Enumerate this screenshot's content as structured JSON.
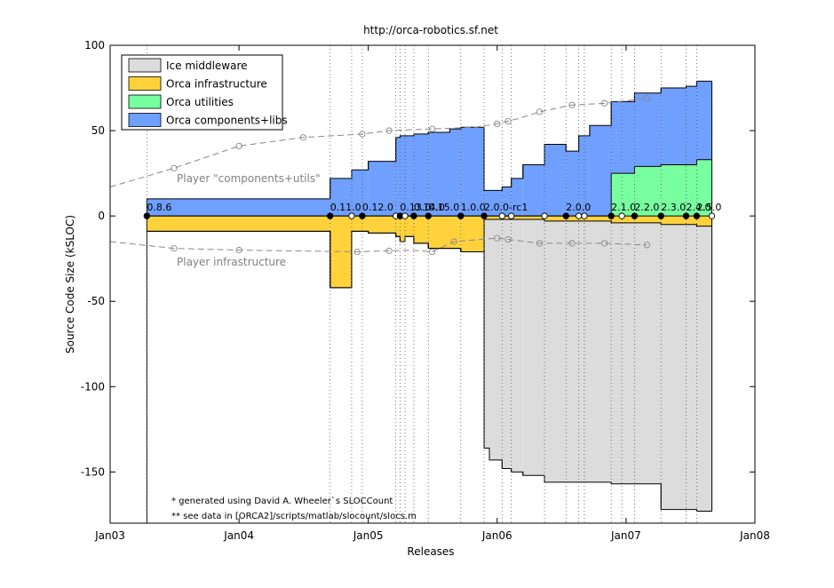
{
  "chart_data": {
    "type": "area",
    "title": "http://orca-robotics.sf.net",
    "xlabel": "Releases",
    "ylabel": "Source Code Size (kSLOC)",
    "xlim": [
      "2003-01-01",
      "2008-01-01"
    ],
    "ylim": [
      -180,
      100
    ],
    "x_ticks": [
      {
        "date": "2003-01-01",
        "label": "Jan03"
      },
      {
        "date": "2004-01-01",
        "label": "Jan04"
      },
      {
        "date": "2005-01-01",
        "label": "Jan05"
      },
      {
        "date": "2006-01-01",
        "label": "Jan06"
      },
      {
        "date": "2007-01-01",
        "label": "Jan07"
      },
      {
        "date": "2008-01-01",
        "label": "Jan08"
      }
    ],
    "y_ticks": [
      -150,
      -100,
      -50,
      0,
      50,
      100
    ],
    "grid": "vertical dotted lines at release dates",
    "legend": {
      "position": "top-left"
    },
    "series": [
      {
        "name": "Ice middleware",
        "color": "#dcdcdc"
      },
      {
        "name": "Orca infrastructure",
        "color": "#ffd23c"
      },
      {
        "name": "Orca utilities",
        "color": "#78ff9f"
      },
      {
        "name": "Orca components+libs",
        "color": "#6f9fff"
      }
    ],
    "steps": [
      {
        "start": "2003-04-15",
        "end": "2004-09-15",
        "infra": 9,
        "ice": 0,
        "comps": 10,
        "utils": 0
      },
      {
        "start": "2004-09-15",
        "end": "2004-11-15",
        "infra": 42,
        "ice": 0,
        "comps": 22,
        "utils": 0
      },
      {
        "start": "2004-11-15",
        "end": "2005-01-01",
        "infra": 9,
        "ice": 0,
        "comps": 27,
        "utils": 0
      },
      {
        "start": "2005-01-01",
        "end": "2005-03-20",
        "infra": 10,
        "ice": 0,
        "comps": 32,
        "utils": 0
      },
      {
        "start": "2005-03-20",
        "end": "2005-04-01",
        "infra": 12,
        "ice": 0,
        "comps": 46,
        "utils": 0
      },
      {
        "start": "2005-04-01",
        "end": "2005-04-15",
        "infra": 15,
        "ice": 0,
        "comps": 47,
        "utils": 0
      },
      {
        "start": "2005-04-15",
        "end": "2005-05-10",
        "infra": 12,
        "ice": 0,
        "comps": 47,
        "utils": 0
      },
      {
        "start": "2005-05-10",
        "end": "2005-06-20",
        "infra": 16,
        "ice": 0,
        "comps": 48,
        "utils": 0
      },
      {
        "start": "2005-06-20",
        "end": "2005-08-20",
        "infra": 19,
        "ice": 0,
        "comps": 49,
        "utils": 0
      },
      {
        "start": "2005-08-20",
        "end": "2005-09-20",
        "infra": 19,
        "ice": 0,
        "comps": 51,
        "utils": 0
      },
      {
        "start": "2005-09-20",
        "end": "2005-11-25",
        "infra": 21,
        "ice": 0,
        "comps": 52,
        "utils": 0
      },
      {
        "start": "2005-11-25",
        "end": "2005-12-10",
        "infra": 2,
        "ice": 134,
        "comps": 15,
        "utils": 0
      },
      {
        "start": "2005-12-10",
        "end": "2006-01-15",
        "infra": 2,
        "ice": 141,
        "comps": 15,
        "utils": 0
      },
      {
        "start": "2006-01-15",
        "end": "2006-02-10",
        "infra": 2,
        "ice": 146,
        "comps": 17,
        "utils": 0
      },
      {
        "start": "2006-02-10",
        "end": "2006-03-15",
        "infra": 2,
        "ice": 148,
        "comps": 22,
        "utils": 0
      },
      {
        "start": "2006-03-15",
        "end": "2006-05-15",
        "infra": 2,
        "ice": 150,
        "comps": 30,
        "utils": 0
      },
      {
        "start": "2006-05-15",
        "end": "2006-07-15",
        "infra": 3,
        "ice": 153,
        "comps": 42,
        "utils": 0
      },
      {
        "start": "2006-07-15",
        "end": "2006-08-20",
        "infra": 3,
        "ice": 153,
        "comps": 38,
        "utils": 0
      },
      {
        "start": "2006-08-20",
        "end": "2006-09-20",
        "infra": 3,
        "ice": 153,
        "comps": 47,
        "utils": 0
      },
      {
        "start": "2006-09-20",
        "end": "2006-11-20",
        "infra": 3,
        "ice": 153,
        "comps": 53,
        "utils": 0
      },
      {
        "start": "2006-11-20",
        "end": "2006-12-20",
        "infra": 4,
        "ice": 153,
        "comps": 42,
        "utils": 25
      },
      {
        "start": "2006-12-20",
        "end": "2007-01-25",
        "infra": 4,
        "ice": 153,
        "comps": 42,
        "utils": 25
      },
      {
        "start": "2007-01-25",
        "end": "2007-04-10",
        "infra": 4,
        "ice": 153,
        "comps": 43,
        "utils": 29
      },
      {
        "start": "2007-04-10",
        "end": "2007-06-20",
        "infra": 5,
        "ice": 167,
        "comps": 45,
        "utils": 30
      },
      {
        "start": "2007-06-20",
        "end": "2007-07-20",
        "infra": 5,
        "ice": 167,
        "comps": 46,
        "utils": 30
      },
      {
        "start": "2007-07-20",
        "end": "2007-09-01",
        "infra": 6,
        "ice": 167,
        "comps": 46,
        "utils": 33
      }
    ],
    "releases": [
      {
        "date": "2003-04-15",
        "label": "0.8.6",
        "labeled": true
      },
      {
        "date": "2004-09-15",
        "label": "0.11.0",
        "labeled": true
      },
      {
        "date": "2004-11-15",
        "label": "",
        "labeled": false
      },
      {
        "date": "2004-12-15",
        "label": "0.12.0",
        "labeled": true
      },
      {
        "date": "2005-03-20",
        "label": "",
        "labeled": false
      },
      {
        "date": "2005-04-01",
        "label": "0.13.0",
        "labeled": true
      },
      {
        "date": "2005-04-15",
        "label": "",
        "labeled": false
      },
      {
        "date": "2005-05-10",
        "label": "0.14.0",
        "labeled": true
      },
      {
        "date": "2005-06-20",
        "label": "0.15.0",
        "labeled": true
      },
      {
        "date": "2005-09-20",
        "label": "1.0.0",
        "labeled": true
      },
      {
        "date": "2005-11-25",
        "label": "2.0.0-rc1",
        "labeled": true
      },
      {
        "date": "2006-01-15",
        "label": "",
        "labeled": false
      },
      {
        "date": "2006-02-10",
        "label": "",
        "labeled": false
      },
      {
        "date": "2006-05-15",
        "label": "",
        "labeled": false
      },
      {
        "date": "2006-07-15",
        "label": "2.0.0",
        "labeled": true
      },
      {
        "date": "2006-08-20",
        "label": "",
        "labeled": false
      },
      {
        "date": "2006-09-05",
        "label": "",
        "labeled": false
      },
      {
        "date": "2006-11-20",
        "label": "2.1.0",
        "labeled": true
      },
      {
        "date": "2006-12-20",
        "label": "",
        "labeled": false
      },
      {
        "date": "2007-01-25",
        "label": "2.2.0",
        "labeled": true
      },
      {
        "date": "2007-04-10",
        "label": "2.3.0",
        "labeled": true
      },
      {
        "date": "2007-06-20",
        "label": "2.4.0",
        "labeled": true
      },
      {
        "date": "2007-07-20",
        "label": "2.5.0",
        "labeled": true
      }
    ],
    "player_comps": {
      "label": "Player \"components+utils\"",
      "points": [
        {
          "date": "2003-01-01",
          "y": 17
        },
        {
          "date": "2003-07-01",
          "y": 28
        },
        {
          "date": "2004-01-01",
          "y": 41
        },
        {
          "date": "2004-07-01",
          "y": 46
        },
        {
          "date": "2004-12-15",
          "y": 48
        },
        {
          "date": "2005-03-01",
          "y": 50
        },
        {
          "date": "2005-07-01",
          "y": 51
        },
        {
          "date": "2005-11-01",
          "y": 52
        },
        {
          "date": "2006-01-01",
          "y": 54
        },
        {
          "date": "2006-03-01",
          "y": 57
        },
        {
          "date": "2006-05-01",
          "y": 61
        },
        {
          "date": "2006-08-01",
          "y": 65
        },
        {
          "date": "2006-11-01",
          "y": 66
        },
        {
          "date": "2007-03-01",
          "y": 69
        }
      ],
      "markers": [
        "2003-07-01",
        "2004-01-01",
        "2004-07-01",
        "2004-12-15",
        "2005-03-01",
        "2005-07-01",
        "2006-01-01",
        "2006-02-01",
        "2006-05-01",
        "2006-08-01",
        "2006-11-01",
        "2007-03-01"
      ]
    },
    "player_infra": {
      "label": "Player infrastructure",
      "points": [
        {
          "date": "2003-01-01",
          "y": -15
        },
        {
          "date": "2003-07-01",
          "y": -19
        },
        {
          "date": "2004-01-01",
          "y": -20
        },
        {
          "date": "2004-12-01",
          "y": -21
        },
        {
          "date": "2005-05-01",
          "y": -20
        },
        {
          "date": "2005-07-01",
          "y": -21
        },
        {
          "date": "2005-09-01",
          "y": -15
        },
        {
          "date": "2006-01-01",
          "y": -13
        },
        {
          "date": "2006-05-01",
          "y": -16
        },
        {
          "date": "2006-11-01",
          "y": -16
        },
        {
          "date": "2007-03-01",
          "y": -17
        }
      ],
      "markers": [
        "2003-07-01",
        "2004-01-01",
        "2004-12-01",
        "2005-03-01",
        "2005-07-01",
        "2005-09-01",
        "2006-01-01",
        "2006-02-01",
        "2006-05-01",
        "2006-08-01",
        "2006-11-01",
        "2007-03-01"
      ]
    },
    "footnotes": [
      "*   generated using David A. Wheeler`s SLOCCount",
      "** see data in [ORCA2]/scripts/matlab/slocount/slocs.m"
    ]
  }
}
